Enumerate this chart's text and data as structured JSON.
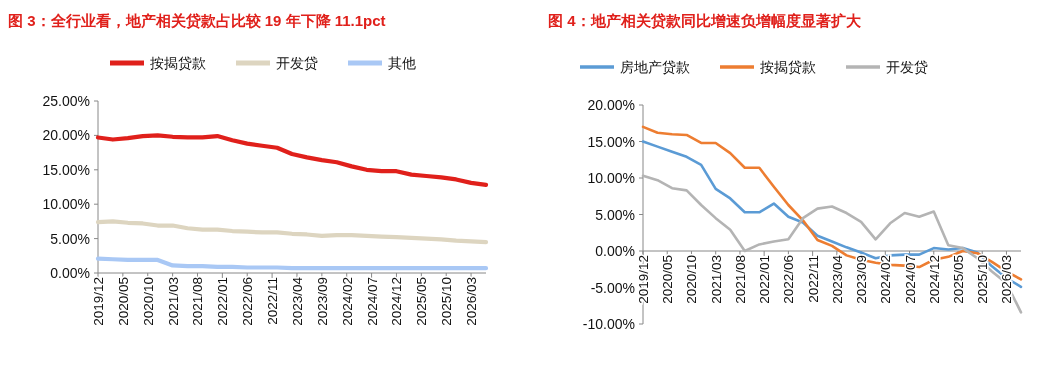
{
  "chart_data": [
    {
      "type": "line",
      "title": "图 3：全行业看，地产相关贷款占比较 19 年下降 11.1pct",
      "legend": "top",
      "grid": false,
      "marker": "none",
      "line_style": "solid",
      "x": [
        "2019-12",
        "2020-03",
        "2020-06",
        "2020-09",
        "2020-12",
        "2021-03",
        "2021-06",
        "2021-09",
        "2021-12",
        "2022-03",
        "2022-06",
        "2022-09",
        "2022-12",
        "2023-03",
        "2023-06",
        "2023-09",
        "2023-12",
        "2024-03",
        "2024-06",
        "2024-09",
        "2024-12",
        "2025-03",
        "2025-06",
        "2025-09",
        "2025-12",
        "2026-03",
        "2026-06"
      ],
      "xlim": [
        "2019-12",
        "2026-06"
      ],
      "xticks": [
        {
          "value": "2019-12",
          "label": "2019/12"
        },
        {
          "value": "2020-05",
          "label": "2020/05"
        },
        {
          "value": "2020-10",
          "label": "2020/10"
        },
        {
          "value": "2021-03",
          "label": "2021/03"
        },
        {
          "value": "2021-08",
          "label": "2021/08"
        },
        {
          "value": "2022-01",
          "label": "2022/01"
        },
        {
          "value": "2022-06",
          "label": "2022/06"
        },
        {
          "value": "2022-11",
          "label": "2022/11"
        },
        {
          "value": "2023-04",
          "label": "2023/04"
        },
        {
          "value": "2023-09",
          "label": "2023/09"
        },
        {
          "value": "2024-02",
          "label": "2024/02"
        },
        {
          "value": "2024-07",
          "label": "2024/07"
        },
        {
          "value": "2024-12",
          "label": "2024/12"
        },
        {
          "value": "2025-05",
          "label": "2025/05"
        },
        {
          "value": "2025-10",
          "label": "2025/10"
        },
        {
          "value": "2026-03",
          "label": "2026/03"
        }
      ],
      "ylim": [
        0,
        25
      ],
      "yticks": [
        {
          "value": 0,
          "label": "0.00%"
        },
        {
          "value": 5,
          "label": "5.00%"
        },
        {
          "value": 10,
          "label": "10.00%"
        },
        {
          "value": 15,
          "label": "15.00%"
        },
        {
          "value": 20,
          "label": "20.00%"
        },
        {
          "value": 25,
          "label": "25.00%"
        }
      ],
      "series": [
        {
          "name": "按揭贷款",
          "color": "#e0201b",
          "values": [
            19.7,
            19.4,
            19.6,
            19.9,
            20.0,
            19.8,
            19.7,
            19.7,
            19.9,
            19.3,
            18.8,
            18.5,
            18.2,
            17.3,
            16.8,
            16.4,
            16.1,
            15.5,
            15.0,
            14.8,
            14.8,
            14.3,
            14.1,
            13.9,
            13.6,
            13.1,
            12.8
          ]
        },
        {
          "name": "开发贷",
          "color": "#ddd5c0",
          "values": [
            7.4,
            7.5,
            7.3,
            7.2,
            6.9,
            6.9,
            6.5,
            6.3,
            6.3,
            6.1,
            6.0,
            5.9,
            5.9,
            5.7,
            5.6,
            5.4,
            5.5,
            5.5,
            5.4,
            5.3,
            5.2,
            5.1,
            5.0,
            4.9,
            4.7,
            4.6,
            4.5
          ]
        },
        {
          "name": "其他",
          "color": "#a9c8f5",
          "values": [
            2.1,
            2.0,
            1.9,
            1.9,
            1.9,
            1.1,
            1.0,
            1.0,
            0.9,
            0.9,
            0.8,
            0.8,
            0.8,
            0.7,
            0.7,
            0.7,
            0.7,
            0.7,
            0.7,
            0.7,
            0.7,
            0.7,
            0.7,
            0.7,
            0.7,
            0.7,
            0.7
          ]
        }
      ]
    },
    {
      "type": "line",
      "title": "图 4：地产相关贷款同比增速负增幅度显著扩大",
      "legend": "top",
      "grid": false,
      "marker": "none",
      "line_style": "solid",
      "x": [
        "2019-12",
        "2020-03",
        "2020-06",
        "2020-09",
        "2020-12",
        "2021-03",
        "2021-06",
        "2021-09",
        "2021-12",
        "2022-03",
        "2022-06",
        "2022-09",
        "2022-12",
        "2023-03",
        "2023-06",
        "2023-09",
        "2023-12",
        "2024-03",
        "2024-06",
        "2024-09",
        "2024-12",
        "2025-03",
        "2025-06",
        "2025-09",
        "2025-12",
        "2026-03",
        "2026-06"
      ],
      "xlim": [
        "2019-12",
        "2026-06"
      ],
      "xticks": [
        {
          "value": "2019-12",
          "label": "2019/12"
        },
        {
          "value": "2020-05",
          "label": "2020/05"
        },
        {
          "value": "2020-10",
          "label": "2020/10"
        },
        {
          "value": "2021-03",
          "label": "2021/03"
        },
        {
          "value": "2021-08",
          "label": "2021/08"
        },
        {
          "value": "2022-01",
          "label": "2022/01"
        },
        {
          "value": "2022-06",
          "label": "2022/06"
        },
        {
          "value": "2022-11",
          "label": "2022/11"
        },
        {
          "value": "2023-04",
          "label": "2023/04"
        },
        {
          "value": "2023-09",
          "label": "2023/09"
        },
        {
          "value": "2024-02",
          "label": "2024/02"
        },
        {
          "value": "2024-07",
          "label": "2024/07"
        },
        {
          "value": "2024-12",
          "label": "2024/12"
        },
        {
          "value": "2025-05",
          "label": "2025/05"
        },
        {
          "value": "2025-10",
          "label": "2025/10"
        },
        {
          "value": "2026-03",
          "label": "2026/03"
        }
      ],
      "ylim": [
        -10,
        20
      ],
      "yticks": [
        {
          "value": -10,
          "label": "-10.00%"
        },
        {
          "value": -5,
          "label": "-5.00%"
        },
        {
          "value": 0,
          "label": "0.00%"
        },
        {
          "value": 5,
          "label": "5.00%"
        },
        {
          "value": 10,
          "label": "10.00%"
        },
        {
          "value": 15,
          "label": "15.00%"
        },
        {
          "value": 20,
          "label": "20.00%"
        }
      ],
      "series": [
        {
          "name": "房地产贷款",
          "color": "#5b9bd5",
          "values": [
            15.0,
            14.3,
            13.6,
            12.9,
            11.8,
            8.5,
            7.2,
            5.3,
            5.3,
            6.5,
            4.7,
            3.9,
            2.1,
            1.3,
            0.5,
            -0.2,
            -1.0,
            -0.6,
            -0.5,
            -0.5,
            0.4,
            0.2,
            0.4,
            -0.2,
            -2.1,
            -3.7,
            -4.9
          ]
        },
        {
          "name": "按揭贷款",
          "color": "#ed7d31",
          "values": [
            17.0,
            16.2,
            16.0,
            15.9,
            14.8,
            14.8,
            13.4,
            11.4,
            11.4,
            8.8,
            6.3,
            4.2,
            1.5,
            0.7,
            -0.6,
            -1.2,
            -1.6,
            -1.9,
            -2.0,
            -2.2,
            -1.2,
            -0.8,
            0.0,
            -0.3,
            -1.5,
            -2.8,
            -3.9
          ]
        },
        {
          "name": "开发贷",
          "color": "#b4b4b4",
          "values": [
            10.3,
            9.7,
            8.6,
            8.3,
            6.3,
            4.5,
            2.9,
            0.0,
            0.9,
            1.3,
            1.6,
            4.5,
            5.8,
            6.1,
            5.2,
            4.0,
            1.6,
            3.8,
            5.2,
            4.7,
            5.4,
            0.8,
            0.4,
            -1.0,
            -2.8,
            -4.4,
            -8.4
          ]
        }
      ]
    }
  ]
}
